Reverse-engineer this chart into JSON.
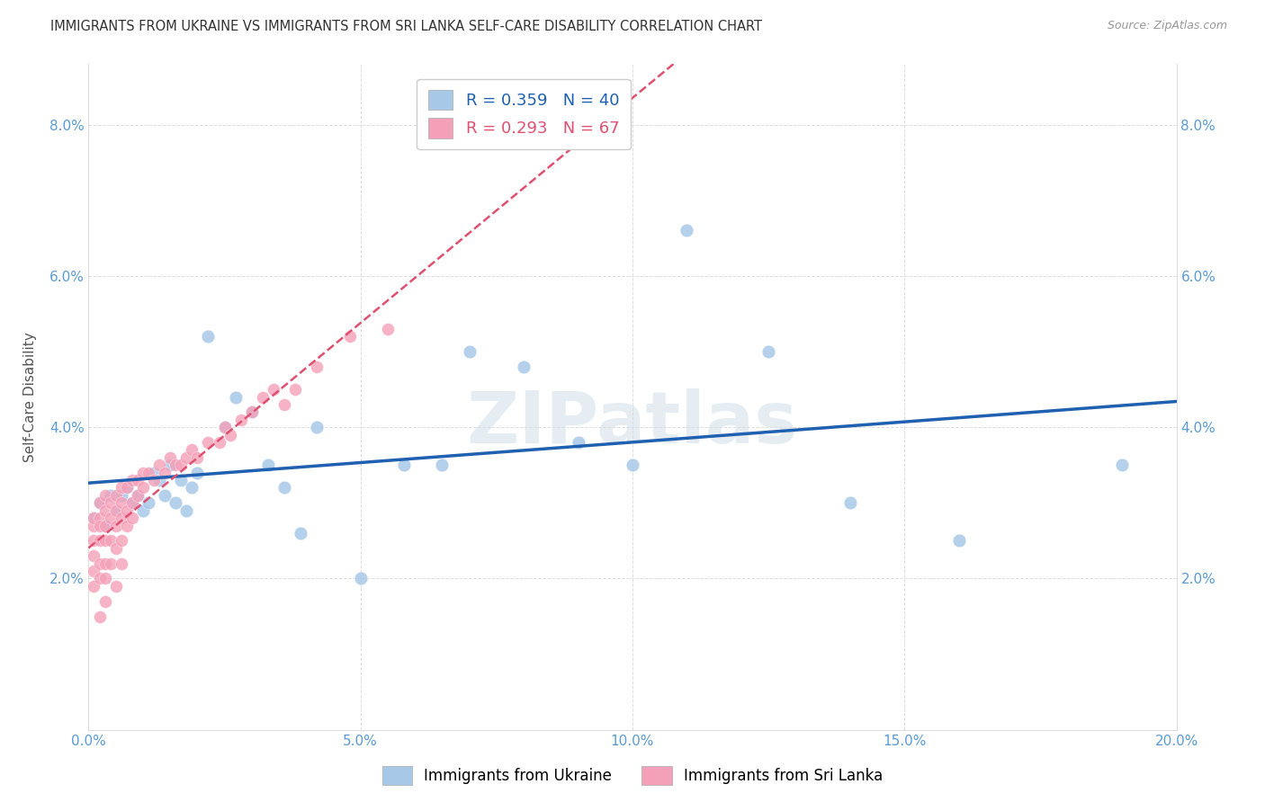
{
  "title": "IMMIGRANTS FROM UKRAINE VS IMMIGRANTS FROM SRI LANKA SELF-CARE DISABILITY CORRELATION CHART",
  "source": "Source: ZipAtlas.com",
  "ylabel": "Self-Care Disability",
  "xlim": [
    0.0,
    0.2
  ],
  "ylim": [
    0.0,
    0.088
  ],
  "ukraine_R": 0.359,
  "ukraine_N": 40,
  "srilanka_R": 0.293,
  "srilanka_N": 67,
  "ukraine_color": "#a8c8e8",
  "srilanka_color": "#f4a0b8",
  "ukraine_line_color": "#2060b0",
  "srilanka_line_color": "#e05070",
  "ukraine_x": [
    0.001,
    0.002,
    0.003,
    0.004,
    0.005,
    0.006,
    0.007,
    0.008,
    0.009,
    0.01,
    0.011,
    0.012,
    0.013,
    0.014,
    0.015,
    0.016,
    0.017,
    0.018,
    0.019,
    0.02,
    0.022,
    0.025,
    0.027,
    0.03,
    0.033,
    0.036,
    0.039,
    0.042,
    0.05,
    0.058,
    0.065,
    0.07,
    0.08,
    0.09,
    0.1,
    0.11,
    0.125,
    0.14,
    0.16,
    0.19
  ],
  "ukraine_y": [
    0.028,
    0.03,
    0.027,
    0.031,
    0.029,
    0.031,
    0.032,
    0.03,
    0.031,
    0.029,
    0.03,
    0.034,
    0.033,
    0.031,
    0.035,
    0.03,
    0.033,
    0.029,
    0.032,
    0.034,
    0.052,
    0.04,
    0.044,
    0.042,
    0.035,
    0.032,
    0.026,
    0.04,
    0.02,
    0.035,
    0.035,
    0.05,
    0.048,
    0.038,
    0.035,
    0.066,
    0.05,
    0.03,
    0.025,
    0.035
  ],
  "srilanka_x": [
    0.001,
    0.001,
    0.001,
    0.001,
    0.001,
    0.001,
    0.002,
    0.002,
    0.002,
    0.002,
    0.002,
    0.002,
    0.002,
    0.003,
    0.003,
    0.003,
    0.003,
    0.003,
    0.003,
    0.003,
    0.004,
    0.004,
    0.004,
    0.004,
    0.005,
    0.005,
    0.005,
    0.005,
    0.005,
    0.006,
    0.006,
    0.006,
    0.006,
    0.006,
    0.007,
    0.007,
    0.007,
    0.008,
    0.008,
    0.008,
    0.009,
    0.009,
    0.01,
    0.01,
    0.011,
    0.012,
    0.013,
    0.014,
    0.015,
    0.016,
    0.017,
    0.018,
    0.019,
    0.02,
    0.022,
    0.024,
    0.025,
    0.026,
    0.028,
    0.03,
    0.032,
    0.034,
    0.036,
    0.038,
    0.042,
    0.048,
    0.055
  ],
  "srilanka_y": [
    0.027,
    0.028,
    0.025,
    0.023,
    0.021,
    0.019,
    0.03,
    0.028,
    0.027,
    0.025,
    0.022,
    0.02,
    0.015,
    0.031,
    0.029,
    0.027,
    0.025,
    0.022,
    0.02,
    0.017,
    0.03,
    0.028,
    0.025,
    0.022,
    0.031,
    0.029,
    0.027,
    0.024,
    0.019,
    0.032,
    0.03,
    0.028,
    0.025,
    0.022,
    0.032,
    0.029,
    0.027,
    0.033,
    0.03,
    0.028,
    0.033,
    0.031,
    0.034,
    0.032,
    0.034,
    0.033,
    0.035,
    0.034,
    0.036,
    0.035,
    0.035,
    0.036,
    0.037,
    0.036,
    0.038,
    0.038,
    0.04,
    0.039,
    0.041,
    0.042,
    0.044,
    0.045,
    0.043,
    0.045,
    0.048,
    0.052,
    0.053
  ]
}
